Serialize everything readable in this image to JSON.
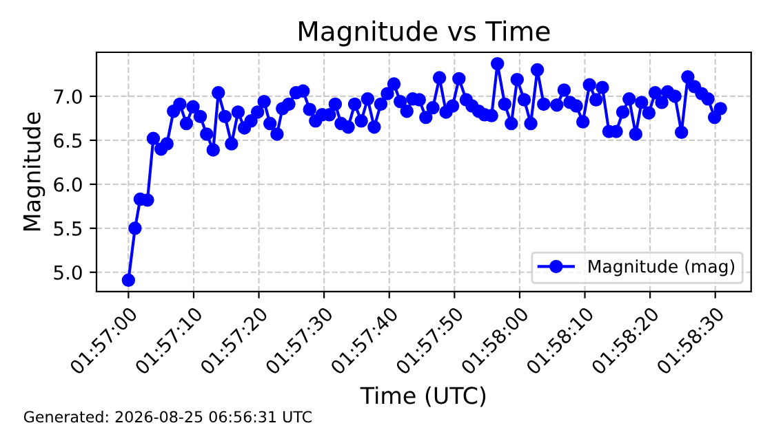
{
  "chart_data": {
    "type": "line",
    "title": "Magnitude vs Time",
    "xlabel": "Time (UTC)",
    "ylabel": "Magnitude",
    "annotations": [
      "Generated: 2026-08-25 06:56:31 UTC"
    ],
    "x": [
      1.95,
      1.95028,
      1.9505,
      1.95081,
      1.95106,
      1.95139,
      1.95164,
      1.95192,
      1.95219,
      1.95247,
      1.95275,
      1.95306,
      1.95333,
      1.95361,
      1.95383,
      1.95411,
      1.95439,
      1.95467,
      1.95494,
      1.95522,
      1.9555,
      1.95578,
      1.95603,
      1.95633,
      1.95656,
      1.95683,
      1.95714,
      1.95744,
      1.95772,
      1.95797,
      1.95825,
      1.95856,
      1.95881,
      1.95906,
      1.95936,
      1.95964,
      1.95992,
      1.96019,
      1.96047,
      1.96075,
      1.96103,
      1.96131,
      1.96158,
      1.96186,
      1.96211,
      1.96239,
      1.96267,
      1.96297,
      1.96325,
      1.96353,
      1.96381,
      1.96408,
      1.96439,
      1.96464,
      1.96492,
      1.96517,
      1.96547,
      1.96572,
      1.96603,
      1.96631,
      1.96656,
      1.96686,
      1.96714,
      1.96742,
      1.96769,
      1.96825,
      1.96856,
      1.96881,
      1.96908,
      1.96936,
      1.96964,
      1.96992,
      1.97019,
      1.97047,
      1.97078,
      1.97106,
      1.97133,
      1.97161,
      1.97186,
      1.97217,
      1.97244,
      1.97272,
      1.97297,
      1.97328,
      1.97356,
      1.97383,
      1.97411,
      1.97442,
      1.97469,
      1.97497,
      1.97522
    ],
    "series": [
      {
        "name": "Magnitude (mag)",
        "color": "#0000ff",
        "values": [
          4.91,
          5.5,
          5.83,
          5.82,
          6.52,
          6.4,
          6.46,
          6.83,
          6.91,
          6.69,
          6.88,
          6.77,
          6.57,
          6.39,
          7.04,
          6.77,
          6.46,
          6.82,
          6.64,
          6.72,
          6.82,
          6.94,
          6.69,
          6.57,
          6.86,
          6.91,
          7.04,
          7.06,
          6.85,
          6.72,
          6.79,
          6.79,
          6.91,
          6.69,
          6.65,
          6.91,
          6.72,
          6.97,
          6.65,
          6.91,
          7.03,
          7.14,
          6.94,
          6.83,
          6.97,
          6.96,
          6.76,
          6.87,
          7.21,
          6.82,
          6.89,
          7.2,
          6.96,
          6.89,
          6.83,
          6.79,
          6.78,
          7.37,
          6.91,
          6.69,
          7.19,
          6.96,
          6.69,
          7.3,
          6.91,
          6.9,
          7.07,
          6.93,
          6.89,
          6.71,
          7.13,
          6.96,
          7.1,
          6.6,
          6.6,
          6.82,
          6.97,
          6.57,
          6.93,
          6.81,
          7.04,
          6.93,
          7.05,
          7.0,
          6.59,
          7.22,
          7.11,
          7.03,
          6.97,
          6.76,
          6.86
        ]
      }
    ],
    "xlim": [
      1.948639,
      1.976528
    ],
    "xticks": [
      {
        "value": 1.95,
        "label": "01:57:00"
      },
      {
        "value": 1.952778,
        "label": "01:57:10"
      },
      {
        "value": 1.955556,
        "label": "01:57:20"
      },
      {
        "value": 1.958333,
        "label": "01:57:30"
      },
      {
        "value": 1.961111,
        "label": "01:57:40"
      },
      {
        "value": 1.963889,
        "label": "01:57:50"
      },
      {
        "value": 1.966667,
        "label": "01:58:00"
      },
      {
        "value": 1.969444,
        "label": "01:58:10"
      },
      {
        "value": 1.972222,
        "label": "01:58:20"
      },
      {
        "value": 1.975,
        "label": "01:58:30"
      }
    ],
    "ylim": [
      4.78,
      7.5
    ],
    "yticks": [
      {
        "value": 5,
        "label": "5.0"
      },
      {
        "value": 5.5,
        "label": "5.5"
      },
      {
        "value": 6,
        "label": "6.0"
      },
      {
        "value": 6.5,
        "label": "6.5"
      },
      {
        "value": 7,
        "label": "7.0"
      }
    ],
    "grid": true,
    "legend": "bottom right",
    "marker": "circle",
    "line_style": "solid"
  }
}
